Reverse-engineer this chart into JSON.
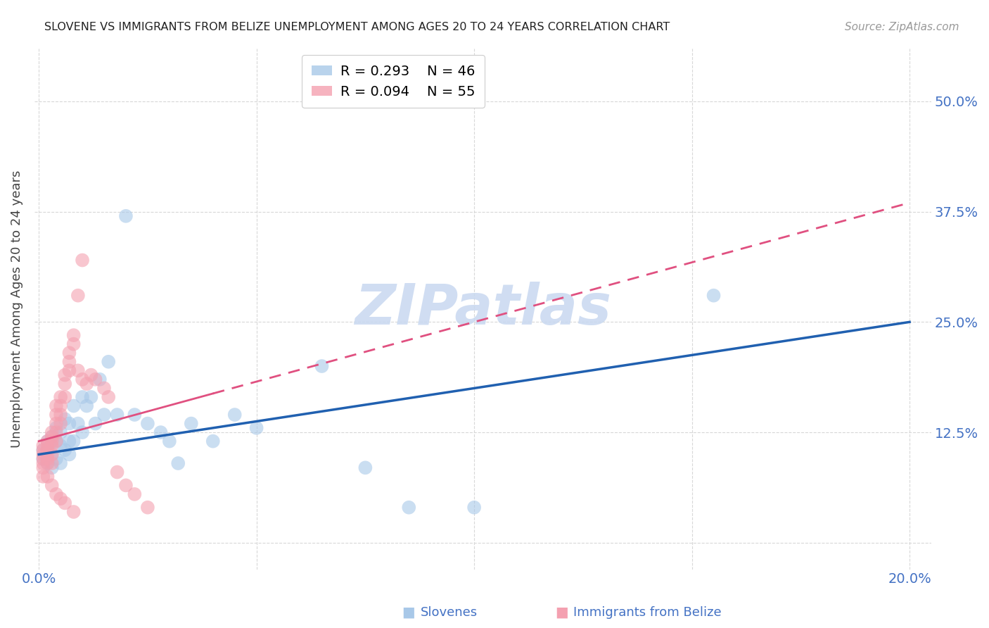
{
  "title": "SLOVENE VS IMMIGRANTS FROM BELIZE UNEMPLOYMENT AMONG AGES 20 TO 24 YEARS CORRELATION CHART",
  "source": "Source: ZipAtlas.com",
  "ylabel": "Unemployment Among Ages 20 to 24 years",
  "xlabel_slovenes": "Slovenes",
  "xlabel_immigrants": "Immigrants from Belize",
  "xmin": -0.001,
  "xmax": 0.205,
  "ymin": -0.03,
  "ymax": 0.56,
  "yticks": [
    0.0,
    0.125,
    0.25,
    0.375,
    0.5
  ],
  "ytick_labels_right": [
    "",
    "12.5%",
    "25.0%",
    "37.5%",
    "50.0%"
  ],
  "xticks": [
    0.0,
    0.05,
    0.1,
    0.15,
    0.2
  ],
  "xtick_labels": [
    "0.0%",
    "",
    "",
    "",
    "20.0%"
  ],
  "legend_R_blue": "R = 0.293",
  "legend_N_blue": "N = 46",
  "legend_R_pink": "R = 0.094",
  "legend_N_pink": "N = 55",
  "blue_color": "#a8c8e8",
  "pink_color": "#f4a0b0",
  "blue_line_color": "#2060b0",
  "pink_line_color": "#e05080",
  "tick_label_color": "#4472c4",
  "watermark_color": "#c8d8f0",
  "grid_color": "#d8d8d8",
  "background_color": "#ffffff",
  "blue_scatter_x": [
    0.001,
    0.001,
    0.002,
    0.002,
    0.002,
    0.003,
    0.003,
    0.003,
    0.004,
    0.004,
    0.004,
    0.005,
    0.005,
    0.005,
    0.006,
    0.006,
    0.007,
    0.007,
    0.007,
    0.008,
    0.008,
    0.009,
    0.01,
    0.01,
    0.011,
    0.012,
    0.013,
    0.014,
    0.015,
    0.016,
    0.018,
    0.02,
    0.022,
    0.025,
    0.028,
    0.03,
    0.032,
    0.035,
    0.04,
    0.045,
    0.05,
    0.065,
    0.075,
    0.085,
    0.1,
    0.155
  ],
  "blue_scatter_y": [
    0.105,
    0.095,
    0.115,
    0.105,
    0.09,
    0.12,
    0.1,
    0.085,
    0.13,
    0.115,
    0.095,
    0.125,
    0.11,
    0.09,
    0.14,
    0.105,
    0.135,
    0.115,
    0.1,
    0.155,
    0.115,
    0.135,
    0.165,
    0.125,
    0.155,
    0.165,
    0.135,
    0.185,
    0.145,
    0.205,
    0.145,
    0.37,
    0.145,
    0.135,
    0.125,
    0.115,
    0.09,
    0.135,
    0.115,
    0.145,
    0.13,
    0.2,
    0.085,
    0.04,
    0.04,
    0.28
  ],
  "pink_scatter_x": [
    0.001,
    0.001,
    0.001,
    0.001,
    0.001,
    0.001,
    0.001,
    0.002,
    0.002,
    0.002,
    0.002,
    0.002,
    0.002,
    0.002,
    0.003,
    0.003,
    0.003,
    0.003,
    0.003,
    0.003,
    0.003,
    0.004,
    0.004,
    0.004,
    0.004,
    0.004,
    0.004,
    0.005,
    0.005,
    0.005,
    0.005,
    0.005,
    0.006,
    0.006,
    0.006,
    0.006,
    0.007,
    0.007,
    0.007,
    0.008,
    0.008,
    0.008,
    0.009,
    0.009,
    0.01,
    0.01,
    0.011,
    0.012,
    0.013,
    0.015,
    0.016,
    0.018,
    0.02,
    0.022,
    0.025
  ],
  "pink_scatter_y": [
    0.11,
    0.105,
    0.1,
    0.095,
    0.09,
    0.085,
    0.075,
    0.115,
    0.11,
    0.105,
    0.1,
    0.095,
    0.09,
    0.075,
    0.125,
    0.12,
    0.115,
    0.11,
    0.1,
    0.09,
    0.065,
    0.155,
    0.145,
    0.135,
    0.125,
    0.115,
    0.055,
    0.165,
    0.155,
    0.145,
    0.135,
    0.05,
    0.19,
    0.18,
    0.165,
    0.045,
    0.215,
    0.205,
    0.195,
    0.235,
    0.225,
    0.035,
    0.28,
    0.195,
    0.32,
    0.185,
    0.18,
    0.19,
    0.185,
    0.175,
    0.165,
    0.08,
    0.065,
    0.055,
    0.04
  ],
  "blue_trend_x0": 0.0,
  "blue_trend_x1": 0.2,
  "blue_trend_y0": 0.1,
  "blue_trend_y1": 0.25,
  "pink_trend_x0": 0.0,
  "pink_trend_x1": 0.2,
  "pink_trend_y0": 0.115,
  "pink_trend_y1": 0.385
}
